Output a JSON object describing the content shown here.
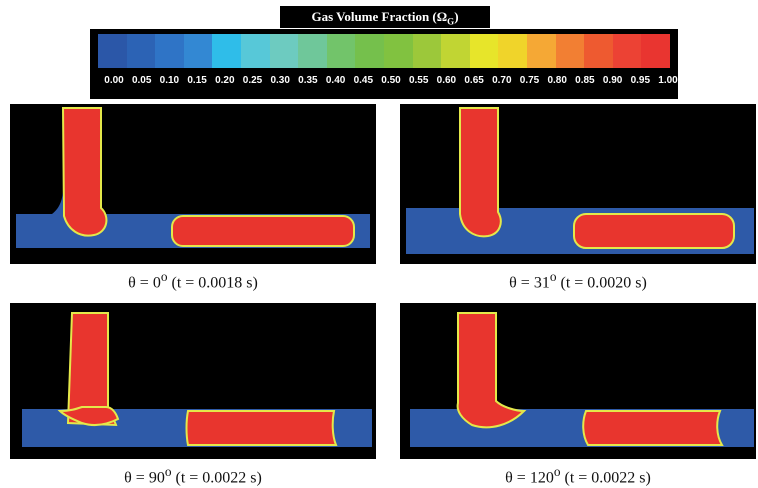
{
  "legend": {
    "title": "Gas Volume Fraction (Ω",
    "title_sub": "G",
    "title_close": ")",
    "ticks": [
      "0.00",
      "0.05",
      "0.10",
      "0.15",
      "0.20",
      "0.25",
      "0.30",
      "0.35",
      "0.40",
      "0.45",
      "0.50",
      "0.55",
      "0.60",
      "0.65",
      "0.70",
      "0.75",
      "0.80",
      "0.85",
      "0.90",
      "0.95",
      "1.00"
    ],
    "colors": [
      "#2b57a8",
      "#2c63b5",
      "#2f74c6",
      "#3388d3",
      "#2fbde9",
      "#57c8d8",
      "#6dcbc0",
      "#6fc79a",
      "#72c46a",
      "#75c04c",
      "#81c240",
      "#9cc83a",
      "#c1d533",
      "#e7e52a",
      "#f0d42a",
      "#f5a835",
      "#f27f33",
      "#ee5a30",
      "#ec4234",
      "#e93530"
    ]
  },
  "colors": {
    "liquid": "#2e5aa8",
    "gas": "#e8352e",
    "interface": "#e4e84a",
    "background": "#000000"
  },
  "panels": [
    {
      "id": "p1",
      "caption_prefix": "θ = 0",
      "caption_deg": "o",
      "caption_suffix": " (t = 0.0018 s)"
    },
    {
      "id": "p2",
      "caption_prefix": "θ = 31",
      "caption_deg": "o",
      "caption_suffix": " (t = 0.0020 s)"
    },
    {
      "id": "p3",
      "caption_prefix": "θ = 90",
      "caption_deg": "o",
      "caption_suffix": " (t = 0.0022 s)"
    },
    {
      "id": "p4",
      "caption_prefix": "θ = 120",
      "caption_deg": "o",
      "caption_suffix": " (t = 0.0022 s)"
    }
  ]
}
